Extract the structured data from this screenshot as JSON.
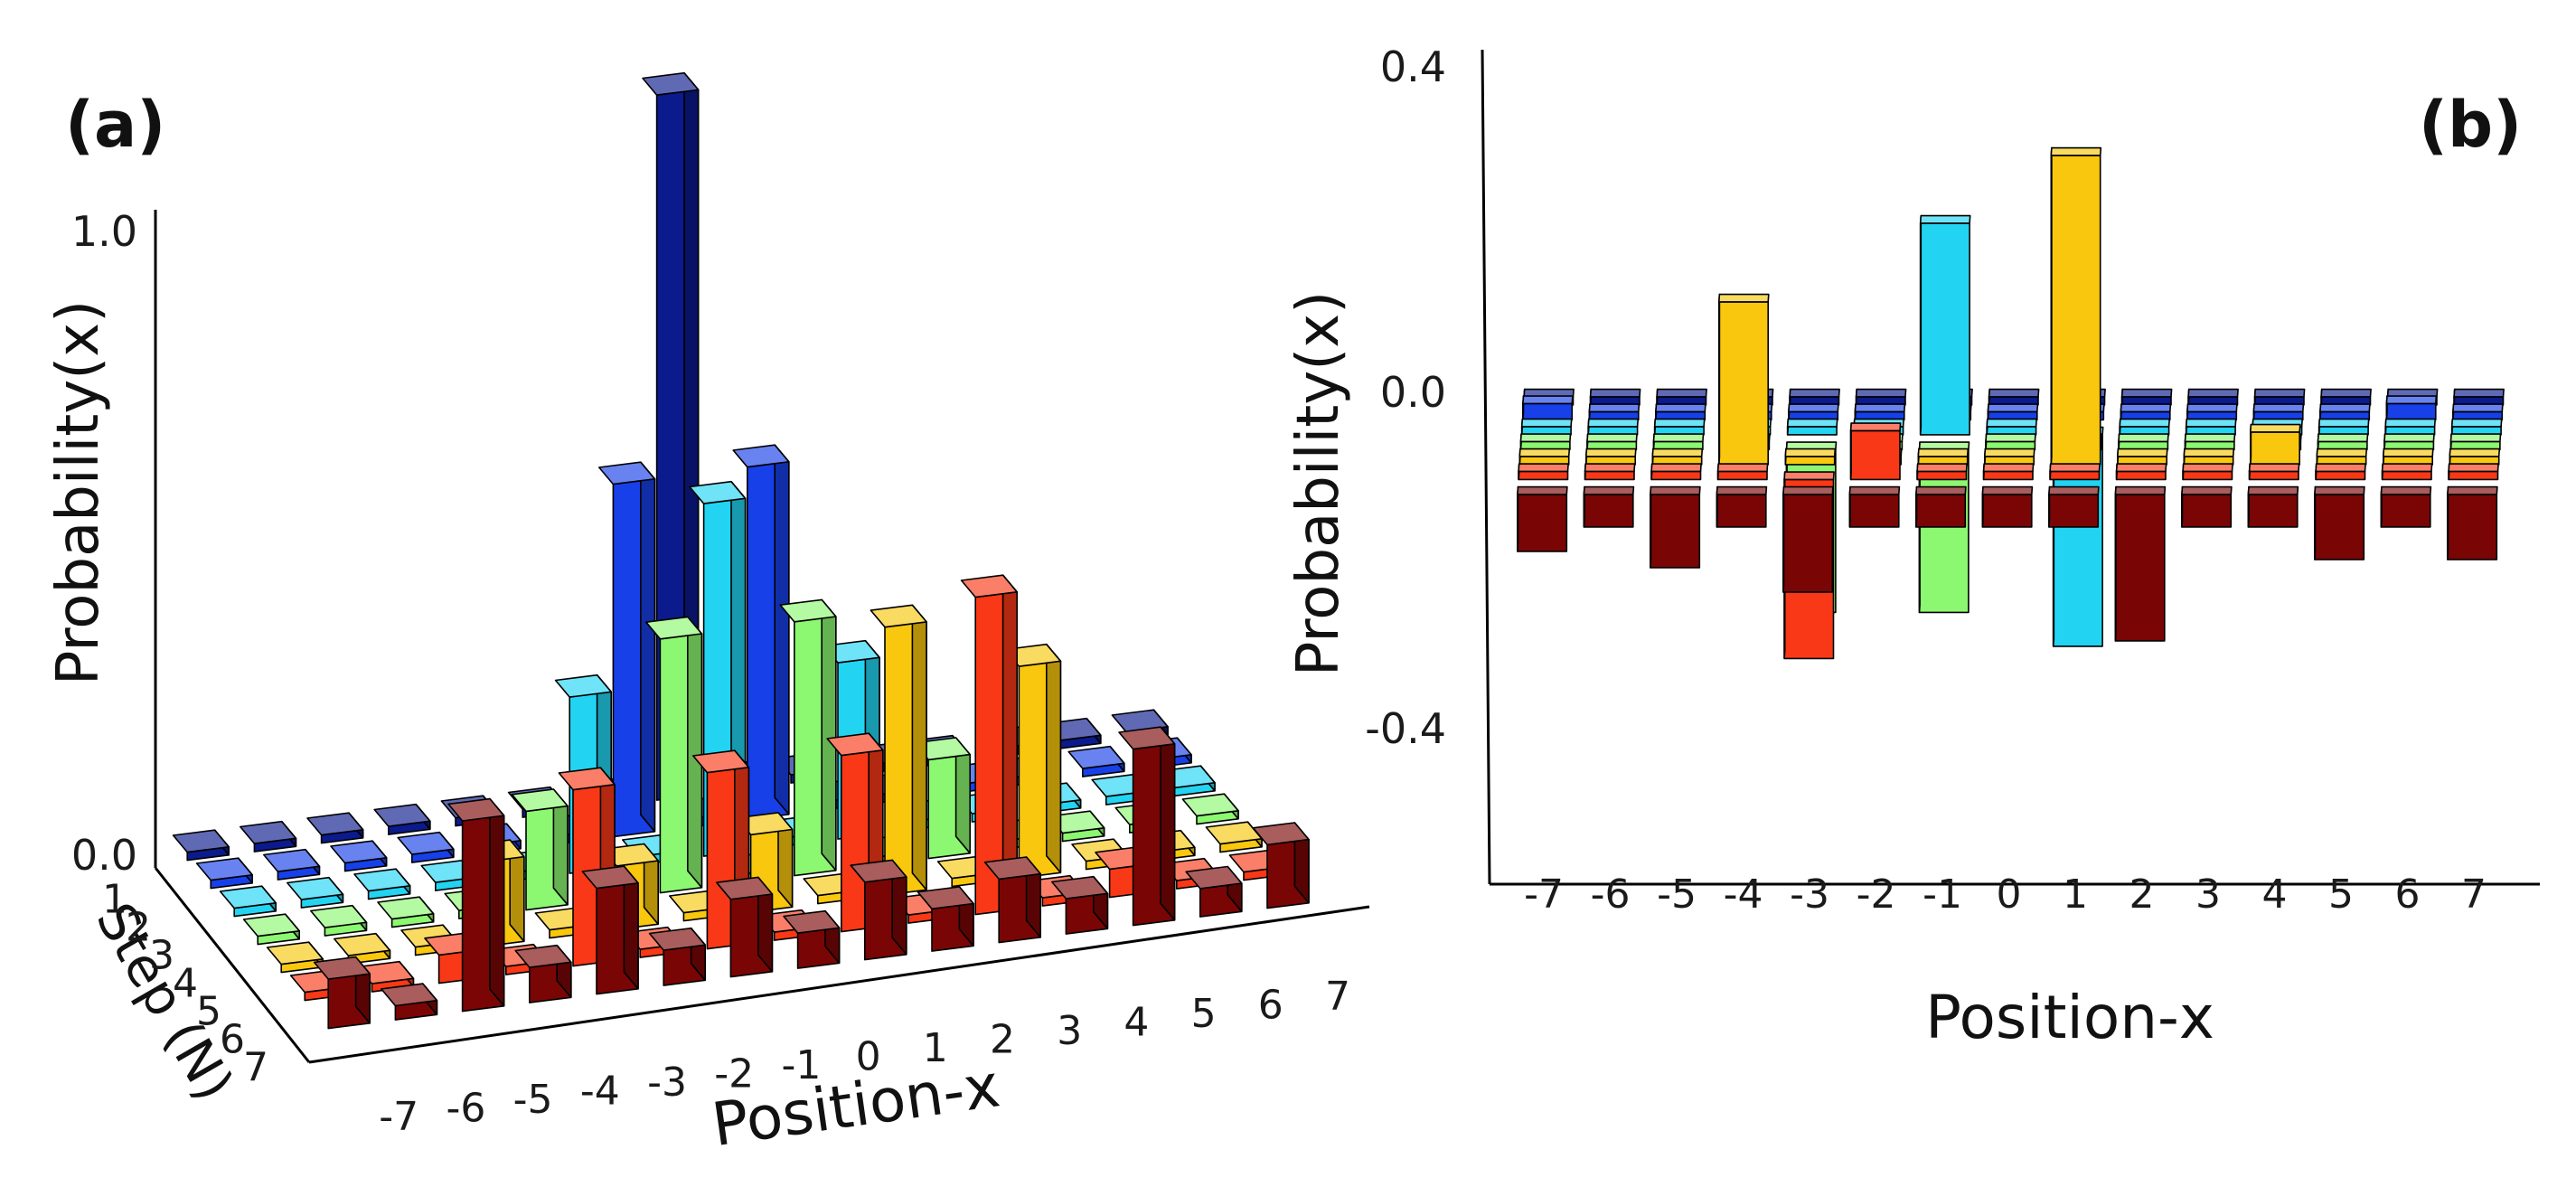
{
  "chart_data": [
    {
      "type": "bar3d",
      "title": "(a)",
      "xlabel": "Position-x",
      "ylabel": "Step (N)",
      "zlabel": "Probability(x)",
      "x": [
        -7,
        -6,
        -5,
        -4,
        -3,
        -2,
        -1,
        0,
        1,
        2,
        3,
        4,
        5,
        6,
        7
      ],
      "x_tick_labels": [
        "-7",
        "-6",
        "-5",
        "-4",
        "-3",
        "-2",
        "-1",
        "0",
        "1",
        "2",
        "3",
        "4",
        "5",
        "6",
        "7"
      ],
      "steps": [
        1,
        2,
        3,
        4,
        5,
        6,
        7
      ],
      "step_tick_labels": [
        "1",
        "2",
        "3",
        "4",
        "5",
        "6",
        "7"
      ],
      "z_ticks": [
        0.0,
        1.0
      ],
      "z_tick_labels": [
        "0.0",
        "1.0"
      ],
      "zlim": [
        0,
        1.0
      ],
      "series": [
        {
          "name": "1",
          "color": "#0b1a8c",
          "values": [
            0,
            0,
            0,
            0,
            0,
            0,
            0,
            1,
            0,
            0,
            0,
            0,
            0,
            0,
            0
          ]
        },
        {
          "name": "2",
          "color": "#1740e8",
          "values": [
            0,
            0,
            0,
            0,
            0,
            0,
            0.5,
            0,
            0.5,
            0,
            0,
            0,
            0,
            0,
            0
          ]
        },
        {
          "name": "3",
          "color": "#22d4f2",
          "values": [
            0,
            0,
            0,
            0,
            0,
            0.25,
            0,
            0.5,
            0,
            0.25,
            0,
            0,
            0,
            0,
            0
          ]
        },
        {
          "name": "4",
          "color": "#8cf770",
          "values": [
            0,
            0,
            0,
            0,
            0.14,
            0,
            0.36,
            0,
            0.36,
            0,
            0.14,
            0,
            0,
            0,
            0
          ]
        },
        {
          "name": "5",
          "color": "#f8c70e",
          "values": [
            0,
            0,
            0,
            0.12,
            0,
            0.09,
            0,
            0.11,
            0,
            0.38,
            0,
            0.3,
            0,
            0,
            0
          ]
        },
        {
          "name": "6",
          "color": "#f83816",
          "values": [
            0,
            0,
            0.04,
            0,
            0.25,
            0,
            0.25,
            0,
            0.25,
            0,
            0.45,
            0,
            0.04,
            0,
            0
          ]
        },
        {
          "name": "7",
          "color": "#7a0505",
          "values": [
            0.07,
            0.02,
            0.27,
            0.05,
            0.15,
            0.05,
            0.11,
            0.05,
            0.11,
            0.06,
            0.09,
            0.05,
            0.25,
            0.04,
            0.09
          ]
        }
      ]
    },
    {
      "type": "bar3d",
      "title": "(b)",
      "xlabel": "Position-x",
      "zlabel": "Probability(x)",
      "x": [
        -7,
        -6,
        -5,
        -4,
        -3,
        -2,
        -1,
        0,
        1,
        2,
        3,
        4,
        5,
        6,
        7
      ],
      "x_tick_labels": [
        "-7",
        "-6",
        "-5",
        "-4",
        "-3",
        "-2",
        "-1",
        "0",
        "1",
        "2",
        "3",
        "4",
        "5",
        "6",
        "7"
      ],
      "steps": [
        1,
        2,
        3,
        4,
        5,
        6,
        7
      ],
      "z_ticks": [
        0.4,
        0.0,
        -0.4
      ],
      "z_tick_labels": [
        "0.4",
        "0.0",
        "-0.4"
      ],
      "zlim": [
        -0.55,
        0.4
      ],
      "series": [
        {
          "name": "1",
          "color": "#0b1a8c",
          "values": [
            0,
            0,
            0,
            0,
            0,
            0,
            0,
            0.01,
            0,
            0,
            0,
            0,
            0,
            0,
            0
          ]
        },
        {
          "name": "2",
          "color": "#1740e8",
          "values": [
            0.02,
            0,
            0,
            0,
            0,
            0,
            0,
            0,
            0,
            0,
            0,
            0,
            0,
            0.02,
            0
          ]
        },
        {
          "name": "3",
          "color": "#22d4f2",
          "values": [
            0,
            0,
            0,
            0,
            0,
            0,
            0.26,
            0,
            -0.26,
            0,
            0,
            0,
            0,
            0,
            0
          ]
        },
        {
          "name": "4",
          "color": "#8cf770",
          "values": [
            0,
            0,
            0,
            0,
            -0.2,
            0,
            -0.2,
            0,
            0,
            0,
            0,
            0,
            0,
            0,
            0
          ]
        },
        {
          "name": "5",
          "color": "#f8c70e",
          "values": [
            0,
            0,
            0,
            0.2,
            0,
            0,
            0,
            0,
            0.38,
            0,
            0,
            0.04,
            0,
            0,
            0
          ]
        },
        {
          "name": "6",
          "color": "#f83816",
          "values": [
            0,
            0,
            0,
            0,
            -0.22,
            0.06,
            0,
            0,
            0,
            0,
            0,
            0,
            0,
            0,
            0
          ]
        },
        {
          "name": "7",
          "color": "#7a0505",
          "values": [
            -0.07,
            -0.04,
            -0.09,
            -0.04,
            -0.12,
            -0.04,
            -0.04,
            -0.04,
            -0.04,
            -0.18,
            -0.04,
            -0.04,
            -0.08,
            -0.04,
            -0.08
          ]
        }
      ]
    }
  ]
}
